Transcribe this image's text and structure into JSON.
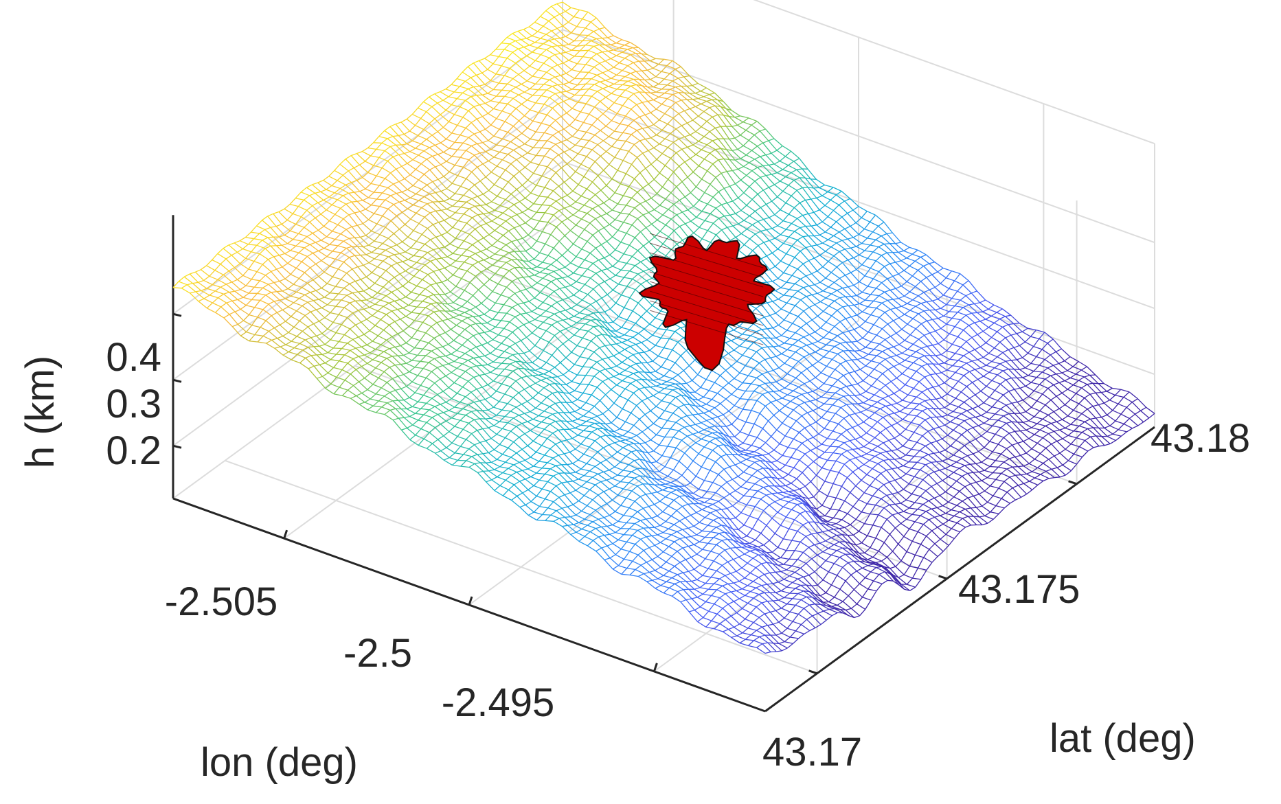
{
  "chart_data": {
    "type": "surface",
    "xlabel": "lon (deg)",
    "ylabel": "lat (deg)",
    "zlabel": "h (km)",
    "x_ticks": [
      "-2.505",
      "-2.5",
      "-2.495"
    ],
    "y_ticks": [
      "43.17",
      "43.175",
      "43.18"
    ],
    "z_ticks": [
      "0.2",
      "0.3",
      "0.4"
    ],
    "xlim": [
      -2.508,
      -2.492
    ],
    "ylim": [
      43.168,
      43.183
    ],
    "zlim": [
      0.12,
      0.55
    ],
    "grid": true,
    "colormap": "parula",
    "surface_style": "mesh",
    "highlight_region_color": "#cc0000",
    "highlight_region_center": [
      -2.4995,
      43.1765,
      0.37
    ]
  }
}
